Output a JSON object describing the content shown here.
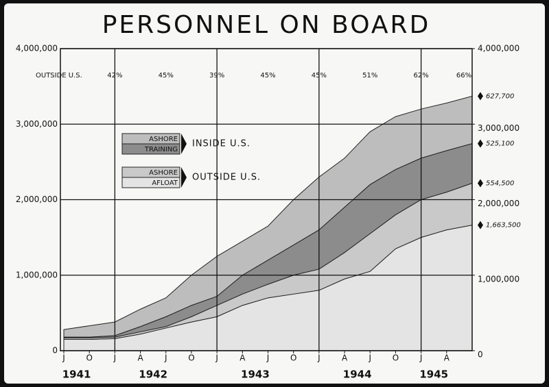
{
  "chart_data": {
    "type": "stacked_area",
    "title": "PERSONNEL ON BOARD",
    "categories": [
      "J",
      "O",
      "J",
      "A",
      "J",
      "O",
      "J",
      "A",
      "J",
      "O",
      "J",
      "A",
      "J",
      "O",
      "J",
      "A",
      null
    ],
    "years": [
      "1941",
      "1942",
      "1943",
      "1944",
      "1945"
    ],
    "groups": [
      {
        "name": "INSIDE U.S.",
        "series": [
          {
            "name": "ASHORE",
            "color": "#bdbdbd",
            "values": [
              100000,
              150000,
              180000,
              230000,
              250000,
              400000,
              530000,
              450000,
              450000,
              600000,
              700000,
              650000,
              700000,
              700000,
              650000,
              630000,
              627700
            ],
            "value_labels": [
              null,
              null,
              null,
              null,
              null,
              null,
              null,
              null,
              null,
              null,
              null,
              null,
              null,
              null,
              null,
              null,
              "627,700"
            ]
          },
          {
            "name": "TRAINING",
            "color": "#8c8c8c",
            "values": [
              10000,
              10000,
              20000,
              70000,
              130000,
              150000,
              120000,
              250000,
              320000,
              400000,
              520000,
              600000,
              650000,
              600000,
              550000,
              550000,
              525100
            ],
            "value_labels": [
              null,
              null,
              null,
              null,
              null,
              null,
              null,
              null,
              null,
              null,
              null,
              null,
              null,
              null,
              null,
              null,
              "525,100"
            ]
          }
        ]
      },
      {
        "name": "OUTSIDE U.S.",
        "series": [
          {
            "name": "ASHORE",
            "color": "#c9c9c9",
            "values": [
              20000,
              20000,
              20000,
              30000,
              20000,
              70000,
              150000,
              150000,
              180000,
              250000,
              280000,
              350000,
              500000,
              450000,
              500000,
              500000,
              554500
            ],
            "value_labels": [
              null,
              null,
              null,
              null,
              null,
              null,
              null,
              null,
              null,
              null,
              null,
              null,
              null,
              null,
              null,
              null,
              "554,500"
            ]
          },
          {
            "name": "AFLOAT",
            "color": "#e4e4e4",
            "values": [
              150000,
              150000,
              160000,
              220000,
              300000,
              380000,
              450000,
              600000,
              700000,
              750000,
              800000,
              950000,
              1050000,
              1350000,
              1500000,
              1600000,
              1663500
            ],
            "value_labels": [
              null,
              null,
              null,
              null,
              null,
              null,
              null,
              null,
              null,
              null,
              null,
              null,
              null,
              null,
              null,
              null,
              "1,663,500"
            ]
          }
        ]
      }
    ],
    "outside_share": {
      "name": "OUTSIDE U.S.",
      "values": [
        null,
        null,
        42,
        null,
        45,
        null,
        39,
        null,
        45,
        null,
        45,
        null,
        51,
        null,
        62,
        null,
        66
      ],
      "value_labels": [
        null,
        null,
        "42%",
        null,
        "45%",
        null,
        "39%",
        null,
        "45%",
        null,
        "45%",
        null,
        "51%",
        null,
        "62%",
        null,
        "66%"
      ]
    },
    "ylim": [
      0,
      4000000
    ],
    "yticks": [
      {
        "value": 0,
        "label": "0"
      },
      {
        "value": 1000000,
        "label": "1,000,000"
      },
      {
        "value": 2000000,
        "label": "2,000,000"
      },
      {
        "value": 3000000,
        "label": "3,000,000"
      },
      {
        "value": 4000000,
        "label": "4,000,000"
      }
    ],
    "y2lim": [
      0,
      4000000
    ],
    "y2ticks": [
      {
        "value": 0,
        "label": "0"
      },
      {
        "value": 1000000,
        "label": "1,000,000"
      },
      {
        "value": 2000000,
        "label": "2,000,000"
      },
      {
        "value": 3000000,
        "label": "3,000,000"
      },
      {
        "value": 4000000,
        "label": "4,000,000"
      }
    ],
    "grid": true
  }
}
